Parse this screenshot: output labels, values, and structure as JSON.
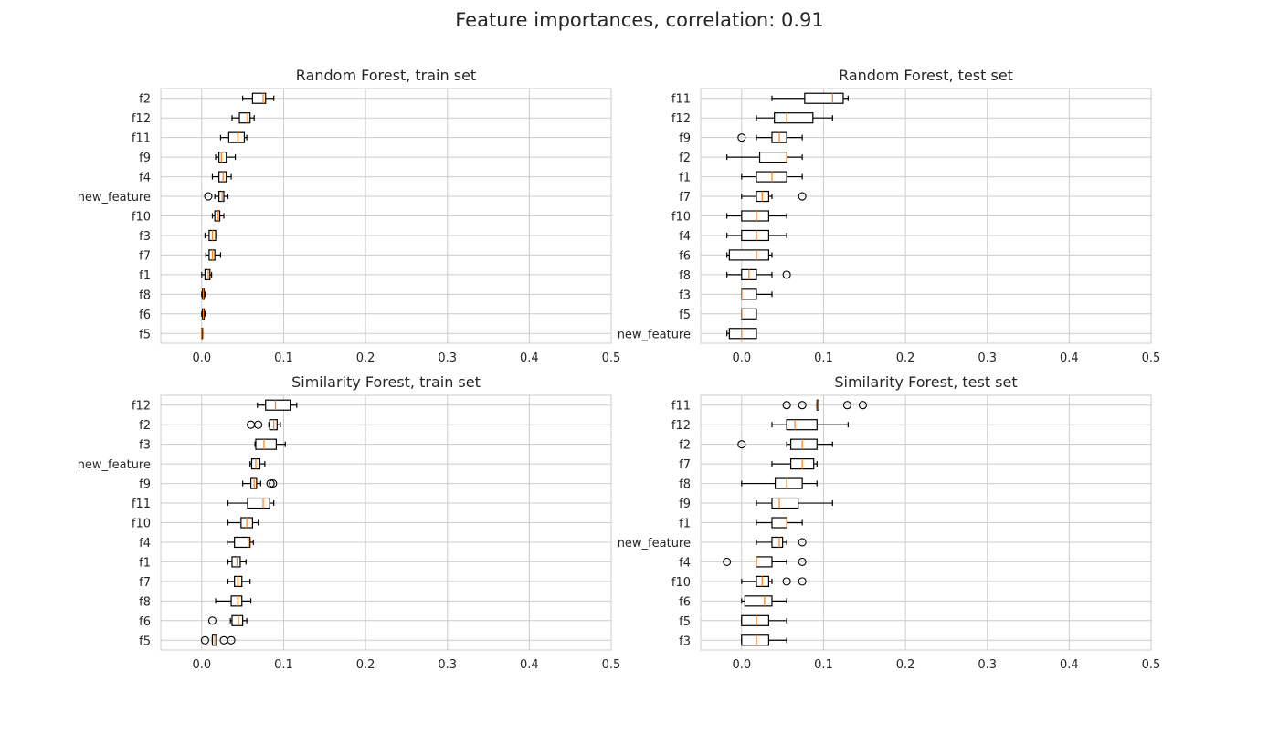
{
  "figure": {
    "suptitle": "Feature importances, correlation: 0.91"
  },
  "style": {
    "box_color": "#000000",
    "median_color": "#ff7f0e",
    "grid_color": "#cccccc",
    "axes_edge_color": "#cccccc",
    "text_color": "#262626"
  },
  "chart_data": [
    {
      "type": "boxplot",
      "title": "Random Forest, train set",
      "xlim": [
        -0.05,
        0.5
      ],
      "xticks": [
        0.0,
        0.1,
        0.2,
        0.3,
        0.4,
        0.5
      ],
      "xticklabels": [
        "0.0",
        "0.1",
        "0.2",
        "0.3",
        "0.4",
        "0.5"
      ],
      "grid": true,
      "features": [
        {
          "name": "f2",
          "wl": 0.05,
          "q1": 0.062,
          "med": 0.075,
          "q3": 0.078,
          "wh": 0.088,
          "outliers": []
        },
        {
          "name": "f12",
          "wl": 0.037,
          "q1": 0.046,
          "med": 0.056,
          "q3": 0.059,
          "wh": 0.064,
          "outliers": []
        },
        {
          "name": "f11",
          "wl": 0.023,
          "q1": 0.033,
          "med": 0.044,
          "q3": 0.052,
          "wh": 0.055,
          "outliers": []
        },
        {
          "name": "f9",
          "wl": 0.017,
          "q1": 0.021,
          "med": 0.024,
          "q3": 0.03,
          "wh": 0.041,
          "outliers": []
        },
        {
          "name": "f4",
          "wl": 0.013,
          "q1": 0.021,
          "med": 0.026,
          "q3": 0.03,
          "wh": 0.036,
          "outliers": []
        },
        {
          "name": "new_feature",
          "wl": 0.016,
          "q1": 0.021,
          "med": 0.025,
          "q3": 0.027,
          "wh": 0.032,
          "outliers": [
            0.008
          ]
        },
        {
          "name": "f10",
          "wl": 0.013,
          "q1": 0.016,
          "med": 0.02,
          "q3": 0.022,
          "wh": 0.027,
          "outliers": []
        },
        {
          "name": "f3",
          "wl": 0.004,
          "q1": 0.009,
          "med": 0.013,
          "q3": 0.017,
          "wh": 0.017,
          "outliers": []
        },
        {
          "name": "f7",
          "wl": 0.005,
          "q1": 0.009,
          "med": 0.013,
          "q3": 0.016,
          "wh": 0.023,
          "outliers": []
        },
        {
          "name": "f1",
          "wl": 0.0,
          "q1": 0.004,
          "med": 0.008,
          "q3": 0.01,
          "wh": 0.012,
          "outliers": []
        },
        {
          "name": "f8",
          "wl": 0.0,
          "q1": 0.001,
          "med": 0.002,
          "q3": 0.003,
          "wh": 0.004,
          "outliers": []
        },
        {
          "name": "f6",
          "wl": 0.0,
          "q1": 0.001,
          "med": 0.002,
          "q3": 0.003,
          "wh": 0.004,
          "outliers": []
        },
        {
          "name": "f5",
          "wl": 0.0,
          "q1": 0.0,
          "med": 0.0,
          "q3": 0.001,
          "wh": 0.001,
          "outliers": []
        }
      ]
    },
    {
      "type": "boxplot",
      "title": "Random Forest, test set",
      "xlim": [
        -0.05,
        0.5
      ],
      "xticks": [
        0.0,
        0.1,
        0.2,
        0.3,
        0.4,
        0.5
      ],
      "xticklabels": [
        "0.0",
        "0.1",
        "0.2",
        "0.3",
        "0.4",
        "0.5"
      ],
      "grid": true,
      "features": [
        {
          "name": "f11",
          "wl": 0.037,
          "q1": 0.077,
          "med": 0.111,
          "q3": 0.124,
          "wh": 0.13,
          "outliers": []
        },
        {
          "name": "f12",
          "wl": 0.018,
          "q1": 0.04,
          "med": 0.055,
          "q3": 0.087,
          "wh": 0.111,
          "outliers": []
        },
        {
          "name": "f9",
          "wl": 0.018,
          "q1": 0.037,
          "med": 0.046,
          "q3": 0.055,
          "wh": 0.074,
          "outliers": [
            0.0
          ]
        },
        {
          "name": "f2",
          "wl": -0.018,
          "q1": 0.022,
          "med": 0.055,
          "q3": 0.055,
          "wh": 0.074,
          "outliers": []
        },
        {
          "name": "f1",
          "wl": 0.0,
          "q1": 0.018,
          "med": 0.037,
          "q3": 0.055,
          "wh": 0.074,
          "outliers": []
        },
        {
          "name": "f7",
          "wl": 0.0,
          "q1": 0.018,
          "med": 0.025,
          "q3": 0.033,
          "wh": 0.037,
          "outliers": [
            0.074
          ]
        },
        {
          "name": "f10",
          "wl": -0.018,
          "q1": 0.0,
          "med": 0.018,
          "q3": 0.033,
          "wh": 0.055,
          "outliers": []
        },
        {
          "name": "f4",
          "wl": -0.018,
          "q1": 0.0,
          "med": 0.018,
          "q3": 0.033,
          "wh": 0.055,
          "outliers": []
        },
        {
          "name": "f6",
          "wl": -0.018,
          "q1": -0.015,
          "med": 0.018,
          "q3": 0.033,
          "wh": 0.037,
          "outliers": []
        },
        {
          "name": "f8",
          "wl": -0.018,
          "q1": 0.0,
          "med": 0.009,
          "q3": 0.018,
          "wh": 0.037,
          "outliers": [
            0.055
          ]
        },
        {
          "name": "f3",
          "wl": 0.0,
          "q1": 0.0,
          "med": 0.0,
          "q3": 0.018,
          "wh": 0.037,
          "outliers": []
        },
        {
          "name": "f5",
          "wl": 0.0,
          "q1": 0.0,
          "med": 0.0,
          "q3": 0.018,
          "wh": 0.018,
          "outliers": []
        },
        {
          "name": "new_feature",
          "wl": -0.018,
          "q1": -0.015,
          "med": 0.0,
          "q3": 0.018,
          "wh": 0.018,
          "outliers": []
        }
      ]
    },
    {
      "type": "boxplot",
      "title": "Similarity Forest, train set",
      "xlim": [
        -0.05,
        0.5
      ],
      "xticks": [
        0.0,
        0.1,
        0.2,
        0.3,
        0.4,
        0.5
      ],
      "xticklabels": [
        "0.0",
        "0.1",
        "0.2",
        "0.3",
        "0.4",
        "0.5"
      ],
      "grid": true,
      "features": [
        {
          "name": "f12",
          "wl": 0.068,
          "q1": 0.078,
          "med": 0.09,
          "q3": 0.108,
          "wh": 0.116,
          "outliers": []
        },
        {
          "name": "f2",
          "wl": 0.082,
          "q1": 0.083,
          "med": 0.088,
          "q3": 0.092,
          "wh": 0.096,
          "outliers": [
            0.06,
            0.069
          ]
        },
        {
          "name": "f3",
          "wl": 0.065,
          "q1": 0.066,
          "med": 0.076,
          "q3": 0.091,
          "wh": 0.102,
          "outliers": []
        },
        {
          "name": "new_feature",
          "wl": 0.059,
          "q1": 0.061,
          "med": 0.066,
          "q3": 0.071,
          "wh": 0.077,
          "outliers": []
        },
        {
          "name": "f9",
          "wl": 0.05,
          "q1": 0.06,
          "med": 0.064,
          "q3": 0.067,
          "wh": 0.072,
          "outliers": [
            0.084,
            0.087
          ]
        },
        {
          "name": "f11",
          "wl": 0.032,
          "q1": 0.056,
          "med": 0.075,
          "q3": 0.083,
          "wh": 0.088,
          "outliers": []
        },
        {
          "name": "f10",
          "wl": 0.032,
          "q1": 0.048,
          "med": 0.055,
          "q3": 0.062,
          "wh": 0.069,
          "outliers": []
        },
        {
          "name": "f4",
          "wl": 0.031,
          "q1": 0.04,
          "med": 0.057,
          "q3": 0.059,
          "wh": 0.063,
          "outliers": []
        },
        {
          "name": "f1",
          "wl": 0.032,
          "q1": 0.037,
          "med": 0.043,
          "q3": 0.047,
          "wh": 0.054,
          "outliers": []
        },
        {
          "name": "f7",
          "wl": 0.032,
          "q1": 0.04,
          "med": 0.044,
          "q3": 0.049,
          "wh": 0.059,
          "outliers": []
        },
        {
          "name": "f8",
          "wl": 0.017,
          "q1": 0.036,
          "med": 0.044,
          "q3": 0.049,
          "wh": 0.06,
          "outliers": []
        },
        {
          "name": "f6",
          "wl": 0.035,
          "q1": 0.037,
          "med": 0.045,
          "q3": 0.05,
          "wh": 0.055,
          "outliers": [
            0.013
          ]
        },
        {
          "name": "f5",
          "wl": 0.013,
          "q1": 0.013,
          "med": 0.016,
          "q3": 0.018,
          "wh": 0.018,
          "outliers": [
            0.004,
            0.027,
            0.036
          ]
        }
      ]
    },
    {
      "type": "boxplot",
      "title": "Similarity Forest, test set",
      "xlim": [
        -0.05,
        0.5
      ],
      "xticks": [
        0.0,
        0.1,
        0.2,
        0.3,
        0.4,
        0.5
      ],
      "xticklabels": [
        "0.0",
        "0.1",
        "0.2",
        "0.3",
        "0.4",
        "0.5"
      ],
      "grid": true,
      "features": [
        {
          "name": "f11",
          "wl": 0.092,
          "q1": 0.092,
          "med": 0.093,
          "q3": 0.094,
          "wh": 0.094,
          "outliers": [
            0.055,
            0.074,
            0.129,
            0.148
          ]
        },
        {
          "name": "f12",
          "wl": 0.037,
          "q1": 0.055,
          "med": 0.065,
          "q3": 0.092,
          "wh": 0.13,
          "outliers": []
        },
        {
          "name": "f2",
          "wl": 0.055,
          "q1": 0.06,
          "med": 0.074,
          "q3": 0.092,
          "wh": 0.111,
          "outliers": [
            0.0
          ]
        },
        {
          "name": "f7",
          "wl": 0.037,
          "q1": 0.06,
          "med": 0.074,
          "q3": 0.088,
          "wh": 0.092,
          "outliers": []
        },
        {
          "name": "f8",
          "wl": 0.0,
          "q1": 0.041,
          "med": 0.055,
          "q3": 0.074,
          "wh": 0.092,
          "outliers": []
        },
        {
          "name": "f9",
          "wl": 0.018,
          "q1": 0.037,
          "med": 0.046,
          "q3": 0.069,
          "wh": 0.111,
          "outliers": []
        },
        {
          "name": "f1",
          "wl": 0.018,
          "q1": 0.037,
          "med": 0.055,
          "q3": 0.055,
          "wh": 0.074,
          "outliers": []
        },
        {
          "name": "new_feature",
          "wl": 0.018,
          "q1": 0.037,
          "med": 0.046,
          "q3": 0.05,
          "wh": 0.055,
          "outliers": [
            0.074
          ]
        },
        {
          "name": "f4",
          "wl": 0.018,
          "q1": 0.018,
          "med": 0.018,
          "q3": 0.037,
          "wh": 0.055,
          "outliers": [
            -0.018,
            0.074
          ]
        },
        {
          "name": "f10",
          "wl": 0.0,
          "q1": 0.018,
          "med": 0.025,
          "q3": 0.033,
          "wh": 0.037,
          "outliers": [
            0.055,
            0.074
          ]
        },
        {
          "name": "f6",
          "wl": 0.0,
          "q1": 0.004,
          "med": 0.028,
          "q3": 0.037,
          "wh": 0.055,
          "outliers": []
        },
        {
          "name": "f5",
          "wl": 0.0,
          "q1": 0.0,
          "med": 0.018,
          "q3": 0.033,
          "wh": 0.055,
          "outliers": []
        },
        {
          "name": "f3",
          "wl": 0.0,
          "q1": 0.0,
          "med": 0.018,
          "q3": 0.033,
          "wh": 0.055,
          "outliers": []
        }
      ]
    }
  ]
}
